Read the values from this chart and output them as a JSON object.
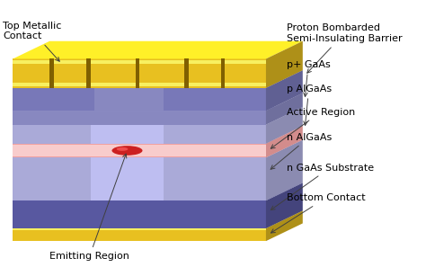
{
  "bg_color": "#FFFFFF",
  "font_size": 8,
  "colors": {
    "gold": "#E8C020",
    "gold_light": "#F5E050",
    "gold_dark": "#A08010",
    "gold_shine": "#F8F060",
    "purple_base": "#7878B8",
    "purple_dark": "#5858A0",
    "purple_mid": "#8888C0",
    "purple_light": "#9898C8",
    "purple_lighter": "#AAAAD8",
    "pink": "#F0A0A0",
    "pink_light": "#F8CCCC",
    "red": "#CC2020",
    "red_light": "#FF6060",
    "groove": "#806000"
  },
  "labels": {
    "top_metallic": "Top Metallic\nContact",
    "proton": "Proton Bombarded\nSemi-Insulating Barrier",
    "p_gaas": "p+ GaAs",
    "p_algaas": "p AlGaAs",
    "active": "Active Region",
    "n_algaas": "n AlGaAs",
    "n_gaas": "n GaAs Substrate",
    "bottom": "Bottom Contact",
    "emitting": "Emitting Region"
  }
}
